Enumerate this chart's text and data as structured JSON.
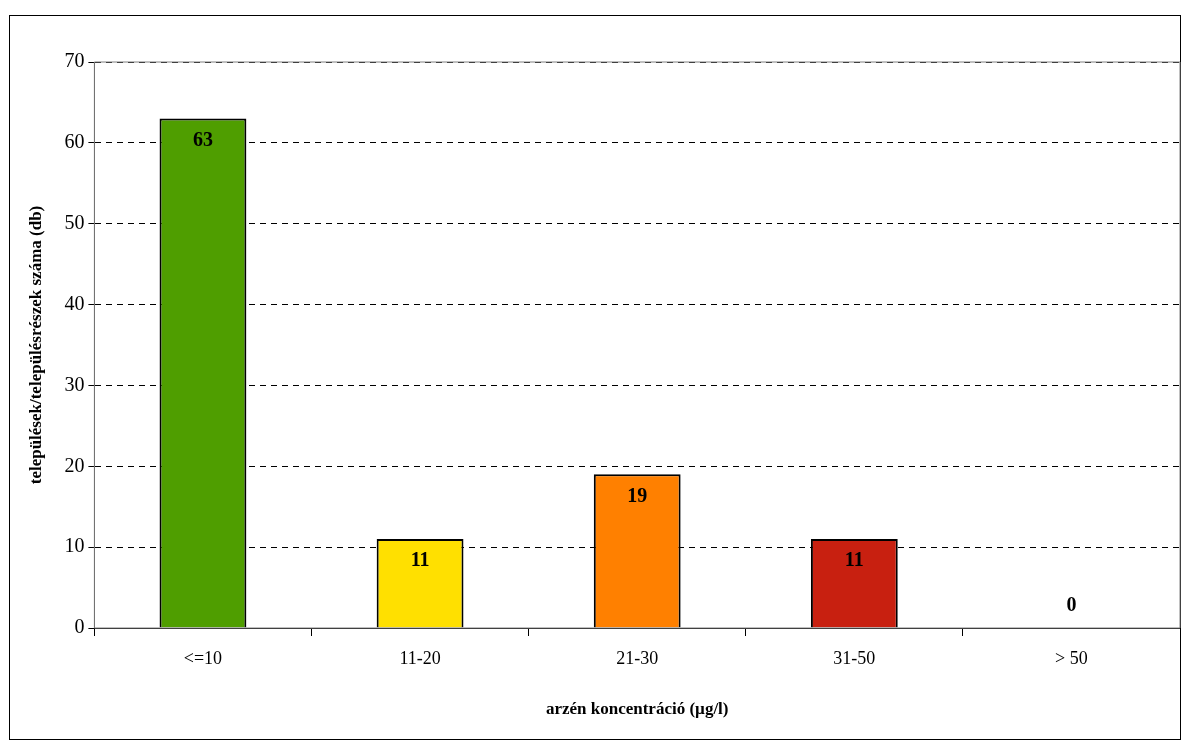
{
  "chart_data": {
    "type": "bar",
    "xlabel": "arzén koncentráció (µg/l)",
    "ylabel": "települések/településrészek száma (db)",
    "categories": [
      "<=10",
      "11-20",
      "21-30",
      "31-50",
      "> 50"
    ],
    "values": [
      63,
      11,
      19,
      11,
      0
    ],
    "colors": [
      "#4f9e00",
      "#ffe000",
      "#ff8000",
      "#c82010",
      "#993300"
    ],
    "ylim": [
      0,
      70
    ],
    "yticks": [
      0,
      10,
      20,
      30,
      40,
      50,
      60,
      70
    ],
    "grid": "y",
    "data_labels": true
  }
}
